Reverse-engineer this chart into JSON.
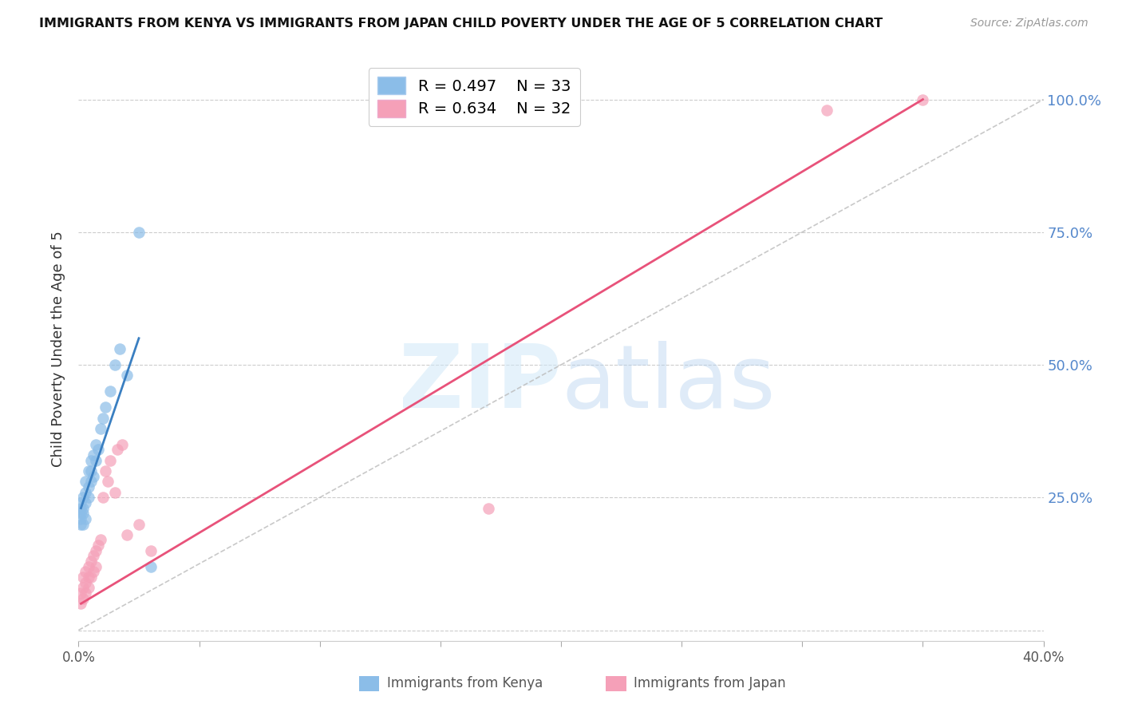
{
  "title": "IMMIGRANTS FROM KENYA VS IMMIGRANTS FROM JAPAN CHILD POVERTY UNDER THE AGE OF 5 CORRELATION CHART",
  "source": "Source: ZipAtlas.com",
  "ylabel_left": "Child Poverty Under the Age of 5",
  "legend_label_kenya": "Immigrants from Kenya",
  "legend_label_japan": "Immigrants from Japan",
  "R_kenya": 0.497,
  "N_kenya": 33,
  "R_japan": 0.634,
  "N_japan": 32,
  "color_kenya": "#8bbde8",
  "color_japan": "#f5a0b8",
  "color_kenya_line": "#3a7fc1",
  "color_japan_line": "#e8527a",
  "color_right_axis": "#5588cc",
  "xlim": [
    0.0,
    0.4
  ],
  "ylim": [
    -0.02,
    1.08
  ],
  "ytick_positions": [
    0.0,
    0.25,
    0.5,
    0.75,
    1.0
  ],
  "ytick_labels_right": [
    "",
    "25.0%",
    "50.0%",
    "75.0%",
    "100.0%"
  ],
  "watermark_zip": "ZIP",
  "watermark_atlas": "atlas",
  "kenya_x": [
    0.001,
    0.001,
    0.001,
    0.001,
    0.001,
    0.002,
    0.002,
    0.002,
    0.002,
    0.003,
    0.003,
    0.003,
    0.003,
    0.004,
    0.004,
    0.004,
    0.005,
    0.005,
    0.005,
    0.006,
    0.006,
    0.007,
    0.007,
    0.008,
    0.009,
    0.01,
    0.011,
    0.013,
    0.015,
    0.017,
    0.02,
    0.025,
    0.03
  ],
  "kenya_y": [
    0.2,
    0.21,
    0.22,
    0.23,
    0.24,
    0.2,
    0.22,
    0.23,
    0.25,
    0.21,
    0.24,
    0.26,
    0.28,
    0.25,
    0.27,
    0.3,
    0.28,
    0.3,
    0.32,
    0.29,
    0.33,
    0.32,
    0.35,
    0.34,
    0.38,
    0.4,
    0.42,
    0.45,
    0.5,
    0.53,
    0.48,
    0.75,
    0.12
  ],
  "japan_x": [
    0.001,
    0.001,
    0.002,
    0.002,
    0.002,
    0.003,
    0.003,
    0.003,
    0.004,
    0.004,
    0.004,
    0.005,
    0.005,
    0.006,
    0.006,
    0.007,
    0.007,
    0.008,
    0.009,
    0.01,
    0.011,
    0.012,
    0.013,
    0.015,
    0.016,
    0.018,
    0.02,
    0.025,
    0.03,
    0.17,
    0.31,
    0.35
  ],
  "japan_y": [
    0.05,
    0.07,
    0.06,
    0.08,
    0.1,
    0.07,
    0.09,
    0.11,
    0.08,
    0.1,
    0.12,
    0.1,
    0.13,
    0.11,
    0.14,
    0.12,
    0.15,
    0.16,
    0.17,
    0.25,
    0.3,
    0.28,
    0.32,
    0.26,
    0.34,
    0.35,
    0.18,
    0.2,
    0.15,
    0.23,
    0.98,
    1.0
  ],
  "kenya_line_x": [
    0.001,
    0.025
  ],
  "kenya_line_y": [
    0.23,
    0.55
  ],
  "japan_line_x": [
    0.001,
    0.35
  ],
  "japan_line_y": [
    0.05,
    1.0
  ],
  "diag_line_x": [
    0.0,
    0.4
  ],
  "diag_line_y": [
    0.0,
    1.0
  ]
}
